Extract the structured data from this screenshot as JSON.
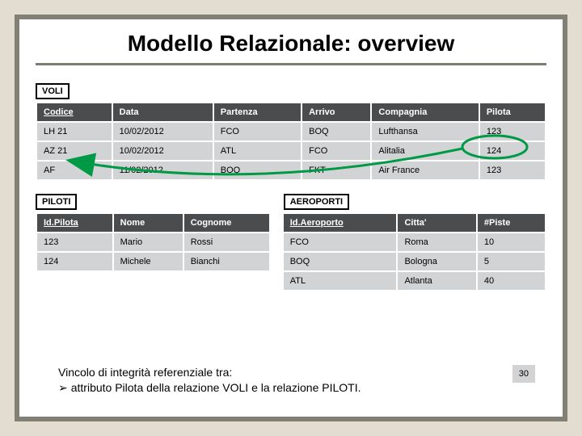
{
  "title": "Modello Relazionale: overview",
  "voli": {
    "label": "VOLI",
    "columns": [
      "Codice",
      "Data",
      "Partenza",
      "Arrivo",
      "Compagnia",
      "Pilota"
    ],
    "underlinedCols": [
      0
    ],
    "rows": [
      [
        "LH 21",
        "10/02/2012",
        "FCO",
        "BOQ",
        "Lufthansa",
        "123"
      ],
      [
        "AZ 21",
        "10/02/2012",
        "ATL",
        "FCO",
        "Alitalia",
        "124"
      ],
      [
        "AF",
        "11/02/2012",
        "BOQ",
        "FKT",
        "Air France",
        "123"
      ]
    ]
  },
  "piloti": {
    "label": "PILOTI",
    "columns": [
      "Id.Pilota",
      "Nome",
      "Cognome"
    ],
    "underlinedCols": [
      0
    ],
    "rows": [
      [
        "123",
        "Mario",
        "Rossi"
      ],
      [
        "124",
        "Michele",
        "Bianchi"
      ]
    ]
  },
  "aeroporti": {
    "label": "AEROPORTI",
    "columns": [
      "Id.Aeroporto",
      "Citta'",
      "#Piste"
    ],
    "underlinedCols": [
      0
    ],
    "rows": [
      [
        "FCO",
        "Roma",
        "10"
      ],
      [
        "BOQ",
        "Bologna",
        "5"
      ],
      [
        "ATL",
        "Atlanta",
        "40"
      ]
    ]
  },
  "note": {
    "line1": "Vincolo di integrità referenziale tra:",
    "line2": "attributo Pilota della relazione VOLI e la relazione PILOTI."
  },
  "pageNumber": "30",
  "arrow": {
    "color": "#009a46",
    "headColor": "#009a46",
    "strokeWidth": 3
  },
  "colors": {
    "slideBg": "#ffffff",
    "outerBg": "#e3ddd1",
    "frame": "#827f75",
    "headerBg": "#4b4c4e",
    "cellBg": "#d2d3d4"
  }
}
